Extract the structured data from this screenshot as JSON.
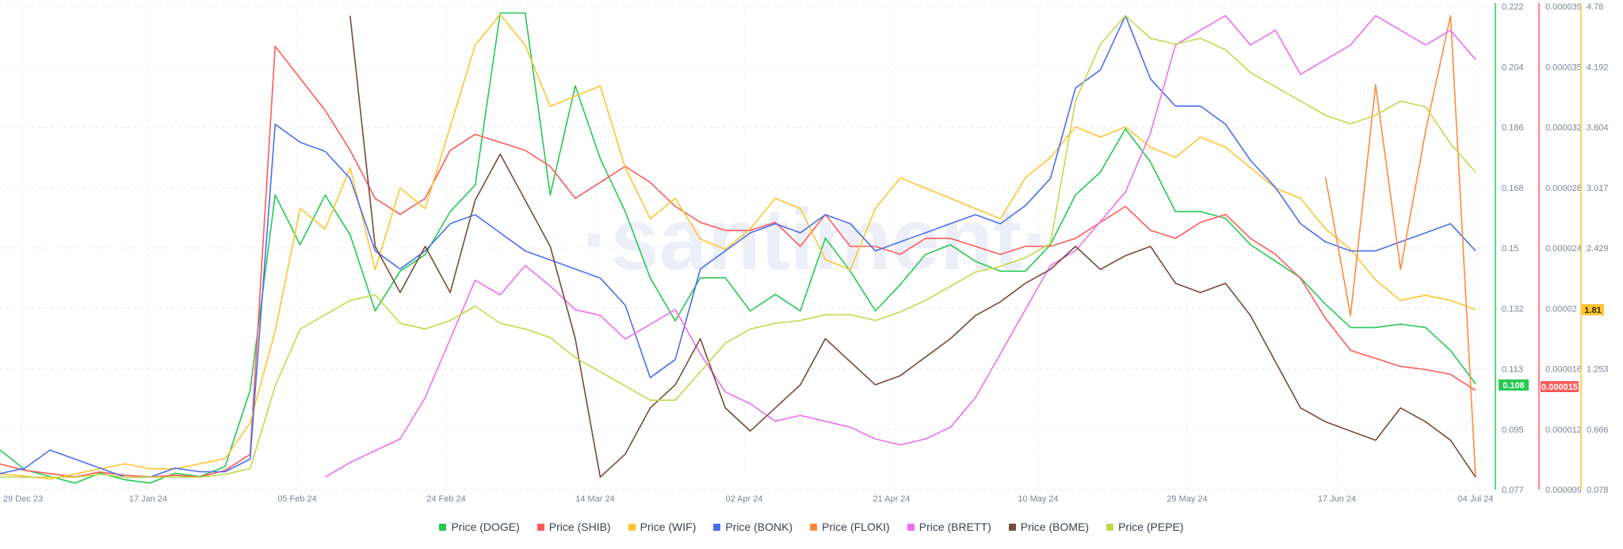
{
  "watermark": "·santiment·",
  "chart_data": {
    "type": "line",
    "x_ticks": [
      "29 Dec 23",
      "17 Jan 24",
      "05 Feb 24",
      "24 Feb 24",
      "14 Mar 24",
      "02 Apr 24",
      "21 Apr 24",
      "10 May 24",
      "29 May 24",
      "17 Jun 24",
      "04 Jul 24"
    ],
    "x_range": [
      "2023-12-29",
      "2024-07-04"
    ],
    "grid": true,
    "legend_position": "bottom",
    "y_axes": [
      {
        "id": "doge",
        "color": "#26c953",
        "ticks": [
          "0.222",
          "0.204",
          "0.186",
          "0.168",
          "0.15",
          "0.132",
          "0.113",
          "0.095",
          "0.077"
        ],
        "range": [
          0.077,
          0.222
        ],
        "badge": "0.108"
      },
      {
        "id": "shib",
        "color": "#ff5b5b",
        "ticks": [
          "0.000039",
          "0.000035",
          "0.000032",
          "0.000028",
          "0.000024",
          "0.00002",
          "0.000016",
          "0.000012",
          "0.000009"
        ],
        "range": [
          9e-06,
          3.9e-05
        ],
        "badge": "0.000015"
      },
      {
        "id": "wif",
        "color": "#ffc432",
        "ticks": [
          "4.78",
          "4.192",
          "3.604",
          "3.017",
          "2.429",
          "1.81",
          "1.253",
          "0.666",
          "0.078"
        ],
        "range": [
          0.078,
          4.78
        ],
        "badge": "1.81"
      }
    ],
    "series": [
      {
        "name": "Price (DOGE)",
        "color": "#26c953",
        "values": [
          0.088,
          0.082,
          0.08,
          0.078,
          0.081,
          0.079,
          0.078,
          0.081,
          0.08,
          0.083,
          0.106,
          0.165,
          0.15,
          0.165,
          0.153,
          0.13,
          0.142,
          0.147,
          0.16,
          0.168,
          0.22,
          0.22,
          0.165,
          0.198,
          0.176,
          0.16,
          0.14,
          0.127,
          0.14,
          0.14,
          0.13,
          0.135,
          0.13,
          0.152,
          0.142,
          0.13,
          0.138,
          0.147,
          0.15,
          0.145,
          0.142,
          0.142,
          0.15,
          0.165,
          0.172,
          0.185,
          0.175,
          0.16,
          0.16,
          0.158,
          0.15,
          0.145,
          0.14,
          0.132,
          0.125,
          0.125,
          0.126,
          0.125,
          0.118,
          0.108
        ]
      },
      {
        "name": "Price (SHIB)",
        "color": "#ff5b5b",
        "values": [
          1.04e-05,
          1e-05,
          9.8e-06,
          9.6e-06,
          9.9e-06,
          9.7e-06,
          9.6e-06,
          9.7e-06,
          9.6e-06,
          1e-05,
          1.1e-05,
          3.65e-05,
          3.45e-05,
          3.25e-05,
          3e-05,
          2.7e-05,
          2.6e-05,
          2.7e-05,
          3e-05,
          3.1e-05,
          3.05e-05,
          3e-05,
          2.9e-05,
          2.7e-05,
          2.8e-05,
          2.9e-05,
          2.8e-05,
          2.65e-05,
          2.55e-05,
          2.5e-05,
          2.5e-05,
          2.55e-05,
          2.4e-05,
          2.6e-05,
          2.4e-05,
          2.4e-05,
          2.35e-05,
          2.45e-05,
          2.45e-05,
          2.4e-05,
          2.35e-05,
          2.4e-05,
          2.4e-05,
          2.45e-05,
          2.55e-05,
          2.65e-05,
          2.5e-05,
          2.45e-05,
          2.55e-05,
          2.6e-05,
          2.45e-05,
          2.35e-05,
          2.2e-05,
          1.95e-05,
          1.75e-05,
          1.7e-05,
          1.65e-05,
          1.63e-05,
          1.6e-05,
          1.5e-05
        ]
      },
      {
        "name": "Price (WIF)",
        "color": "#ffc432",
        "values": [
          0.2,
          0.18,
          0.15,
          0.2,
          0.25,
          0.3,
          0.25,
          0.25,
          0.3,
          0.35,
          0.7,
          1.6,
          2.8,
          2.6,
          3.2,
          2.2,
          3.0,
          2.8,
          3.6,
          4.4,
          4.7,
          4.4,
          3.8,
          3.9,
          4.0,
          3.2,
          2.7,
          2.9,
          2.5,
          2.4,
          2.6,
          2.9,
          2.8,
          2.3,
          2.2,
          2.8,
          3.1,
          3.0,
          2.9,
          2.8,
          2.7,
          3.1,
          3.3,
          3.6,
          3.5,
          3.6,
          3.4,
          3.3,
          3.5,
          3.4,
          3.2,
          3.0,
          2.9,
          2.6,
          2.4,
          2.1,
          1.9,
          1.95,
          1.9,
          1.81
        ]
      },
      {
        "name": "Price (BONK)",
        "color": "#4a6ff0",
        "values": [
          2.7e-06,
          3e-06,
          4e-06,
          3.5e-06,
          3e-06,
          2.5e-06,
          2.5e-06,
          3e-06,
          2.8e-06,
          2.8e-06,
          3.5e-06,
          2.2e-05,
          2.1e-05,
          2.05e-05,
          1.9e-05,
          1.5e-05,
          1.4e-05,
          1.5e-05,
          1.65e-05,
          1.7e-05,
          1.6e-05,
          1.5e-05,
          1.45e-05,
          1.4e-05,
          1.35e-05,
          1.2e-05,
          8e-06,
          9e-06,
          1.4e-05,
          1.5e-05,
          1.6e-05,
          1.65e-05,
          1.6e-05,
          1.7e-05,
          1.65e-05,
          1.5e-05,
          1.55e-05,
          1.6e-05,
          1.65e-05,
          1.7e-05,
          1.65e-05,
          1.75e-05,
          1.9e-05,
          2.4e-05,
          2.5e-05,
          2.8e-05,
          2.45e-05,
          2.3e-05,
          2.3e-05,
          2.2e-05,
          2e-05,
          1.85e-05,
          1.65e-05,
          1.55e-05,
          1.5e-05,
          1.5e-05,
          1.55e-05,
          1.6e-05,
          1.65e-05,
          1.5e-05
        ]
      },
      {
        "name": "Price (FLOKI)",
        "color": "#ff8a3d",
        "values": [
          null,
          null,
          null,
          null,
          null,
          null,
          null,
          null,
          null,
          null,
          null,
          null,
          null,
          null,
          null,
          null,
          null,
          null,
          null,
          null,
          null,
          null,
          null,
          null,
          null,
          null,
          null,
          null,
          null,
          null,
          null,
          null,
          null,
          null,
          null,
          null,
          null,
          null,
          null,
          null,
          null,
          null,
          null,
          null,
          null,
          null,
          null,
          null,
          null,
          null,
          null,
          null,
          null,
          0.00026,
          0.0002,
          0.0003,
          0.00022,
          0.00028,
          0.00033,
          0.00013
        ]
      },
      {
        "name": "Price (BRETT)",
        "color": "#f06ef0",
        "values": [
          null,
          null,
          null,
          null,
          null,
          null,
          null,
          null,
          null,
          null,
          null,
          null,
          null,
          0.013,
          0.018,
          0.022,
          0.026,
          0.04,
          0.06,
          0.08,
          0.075,
          0.085,
          0.078,
          0.07,
          0.068,
          0.06,
          0.065,
          0.07,
          0.055,
          0.042,
          0.038,
          0.032,
          0.034,
          0.032,
          0.03,
          0.026,
          0.024,
          0.026,
          0.03,
          0.04,
          0.055,
          0.07,
          0.085,
          0.09,
          0.1,
          0.11,
          0.13,
          0.16,
          0.165,
          0.17,
          0.16,
          0.165,
          0.15,
          0.155,
          0.16,
          0.17,
          0.165,
          0.16,
          0.165,
          0.155
        ]
      },
      {
        "name": "Price (BOME)",
        "color": "#7a4a3a",
        "values": [
          null,
          null,
          null,
          null,
          null,
          null,
          null,
          null,
          null,
          null,
          null,
          null,
          null,
          null,
          0.018,
          0.013,
          0.012,
          0.013,
          0.012,
          0.014,
          0.015,
          0.014,
          0.013,
          0.011,
          0.008,
          0.0085,
          0.0095,
          0.01,
          0.011,
          0.0095,
          0.009,
          0.0095,
          0.01,
          0.011,
          0.0105,
          0.01,
          0.0102,
          0.0106,
          0.011,
          0.0115,
          0.0118,
          0.0122,
          0.0125,
          0.013,
          0.0125,
          0.0128,
          0.013,
          0.0122,
          0.012,
          0.0122,
          0.0115,
          0.0105,
          0.0095,
          0.0092,
          0.009,
          0.0088,
          0.0095,
          0.0092,
          0.0088,
          0.008
        ]
      },
      {
        "name": "Price (PEPE)",
        "color": "#c4d94a",
        "values": [
          8e-07,
          8e-07,
          8e-07,
          8e-07,
          9e-07,
          8e-07,
          8e-07,
          8e-07,
          8e-07,
          9e-07,
          1.1e-06,
          4e-06,
          6e-06,
          6.5e-06,
          7e-06,
          7.2e-06,
          6.2e-06,
          6e-06,
          6.3e-06,
          6.8e-06,
          6.2e-06,
          6e-06,
          5.7e-06,
          5e-06,
          4.5e-06,
          4e-06,
          3.5e-06,
          3.5e-06,
          4.5e-06,
          5.5e-06,
          6e-06,
          6.2e-06,
          6.3e-06,
          6.5e-06,
          6.5e-06,
          6.3e-06,
          6.6e-06,
          7e-06,
          7.5e-06,
          8e-06,
          8.2e-06,
          8.5e-06,
          9e-06,
          1.4e-05,
          1.6e-05,
          1.7e-05,
          1.62e-05,
          1.6e-05,
          1.62e-05,
          1.58e-05,
          1.5e-05,
          1.45e-05,
          1.4e-05,
          1.35e-05,
          1.32e-05,
          1.35e-05,
          1.4e-05,
          1.38e-05,
          1.25e-05,
          1.15e-05
        ]
      }
    ]
  },
  "legend_hint": "series names are drawn from chart_data.series"
}
